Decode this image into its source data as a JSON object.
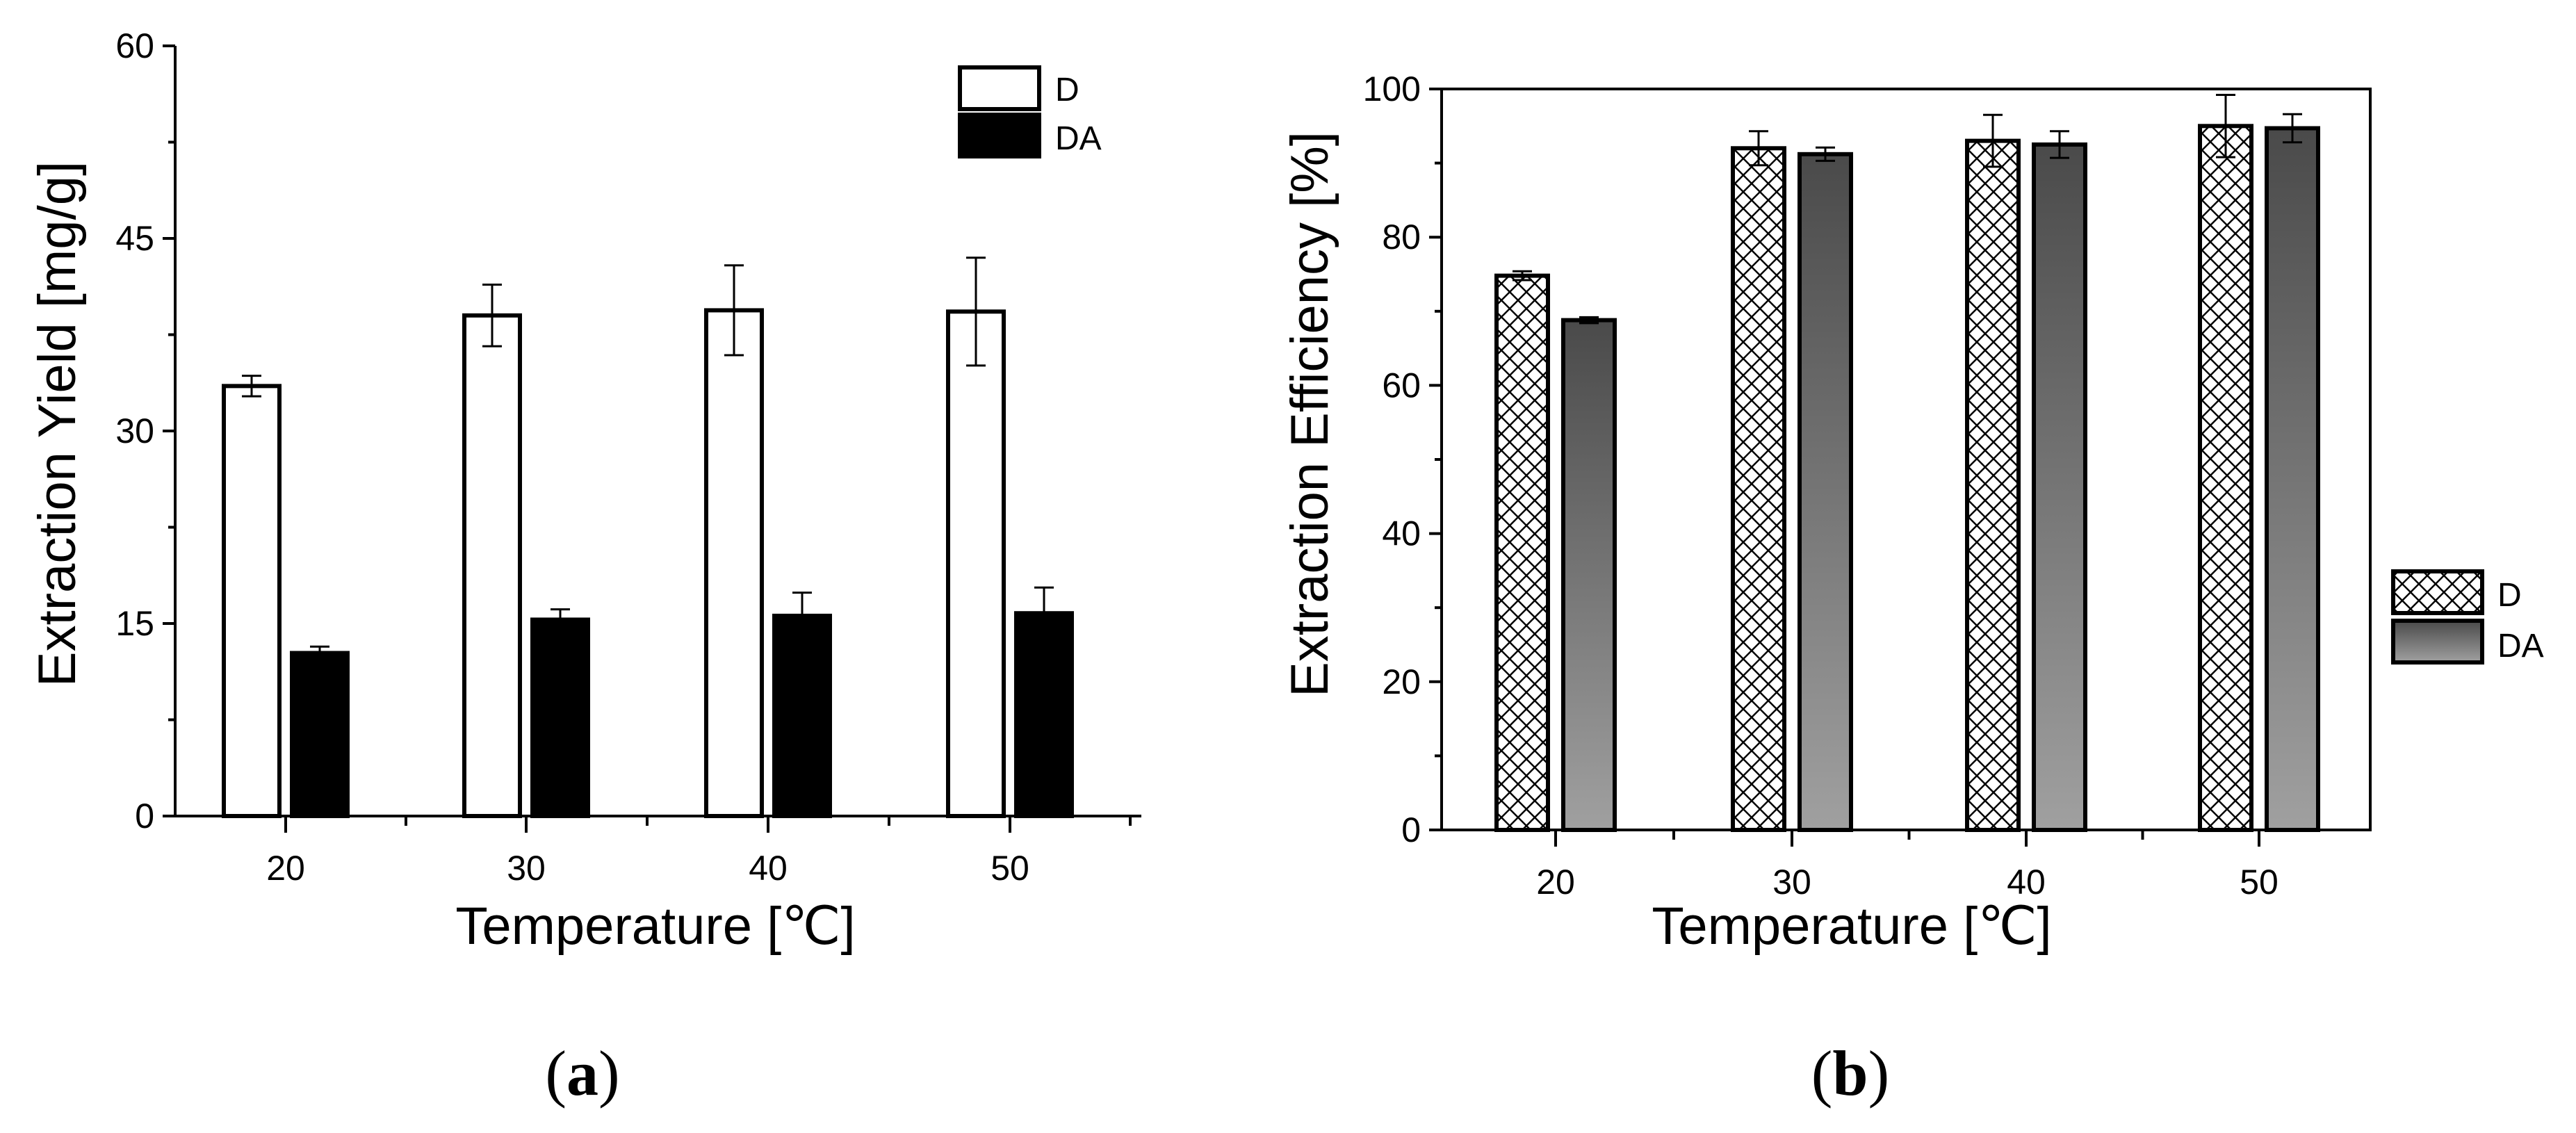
{
  "chart_data": [
    {
      "type": "bar",
      "panel_label": "(a)",
      "panel_letter": "a",
      "xlabel": "Temperature [℃]",
      "ylabel": "Extraction Yield [mg/g]",
      "categories": [
        "20",
        "30",
        "40",
        "50"
      ],
      "ylim": [
        0,
        60
      ],
      "yticks": [
        "0",
        "15",
        "30",
        "45",
        "60"
      ],
      "legend_position": "top-right",
      "series": [
        {
          "name": "D",
          "style": "white",
          "values": [
            33.5,
            39.0,
            39.4,
            39.3
          ],
          "errors": [
            0.8,
            2.4,
            3.5,
            4.2
          ]
        },
        {
          "name": "DA",
          "style": "black",
          "values": [
            12.7,
            15.3,
            15.6,
            15.8
          ],
          "errors": [
            0.5,
            0.8,
            1.8,
            2.0
          ]
        }
      ]
    },
    {
      "type": "bar",
      "panel_label": "(b)",
      "panel_letter": "b",
      "xlabel": "Temperature [℃]",
      "ylabel": "Extraction Efficiency [%]",
      "categories": [
        "20",
        "30",
        "40",
        "50"
      ],
      "ylim": [
        0,
        100
      ],
      "yticks": [
        "0",
        "20",
        "40",
        "60",
        "80",
        "100"
      ],
      "legend_position": "right",
      "series": [
        {
          "name": "D",
          "style": "crosshatch",
          "values": [
            74.8,
            92.0,
            93.0,
            95.0
          ],
          "errors": [
            0.6,
            2.3,
            3.5,
            4.2
          ]
        },
        {
          "name": "DA",
          "style": "gray-gradient",
          "values": [
            68.8,
            91.2,
            92.5,
            94.7
          ],
          "errors": [
            0.4,
            0.9,
            1.8,
            1.9
          ]
        }
      ]
    }
  ]
}
